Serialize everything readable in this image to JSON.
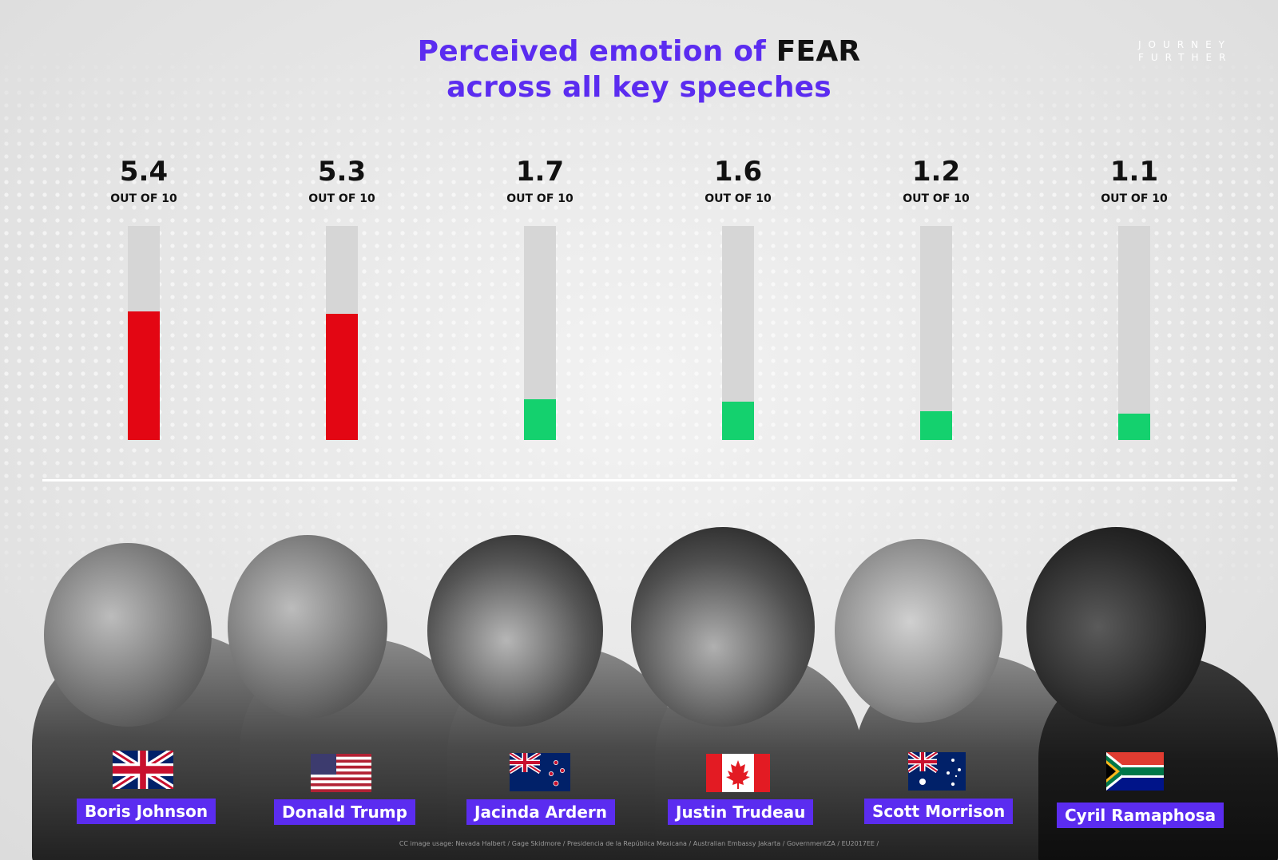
{
  "title": {
    "line1_pre": "Perceived emotion of ",
    "line1_highlight": "FEAR",
    "line2": "across all key speeches"
  },
  "logo": {
    "line1": "JOURNEY",
    "line2": "FURTHER"
  },
  "colors": {
    "accent": "#5b2cf0",
    "high": "#e30613",
    "low": "#14d16e",
    "track": "#d6d6d6"
  },
  "chart_data": {
    "type": "bar",
    "title": "Perceived emotion of FEAR across all key speeches",
    "categories": [
      "Boris Johnson",
      "Donald Trump",
      "Jacinda Ardern",
      "Justin Trudeau",
      "Scott Morrison",
      "Cyril Ramaphosa"
    ],
    "values": [
      5.4,
      5.3,
      1.7,
      1.6,
      1.2,
      1.1
    ],
    "value_labels": [
      "5.4",
      "5.3",
      "1.7",
      "1.6",
      "1.2",
      "1.1"
    ],
    "scale_label": "OUT OF 10",
    "ylim": [
      0,
      9
    ],
    "bar_colors": [
      "#e30613",
      "#e30613",
      "#14d16e",
      "#14d16e",
      "#14d16e",
      "#14d16e"
    ]
  },
  "people": [
    {
      "name": "Boris Johnson",
      "flag": "uk-flag-icon"
    },
    {
      "name": "Donald Trump",
      "flag": "us-flag-icon"
    },
    {
      "name": "Jacinda Ardern",
      "flag": "nz-flag-icon"
    },
    {
      "name": "Justin Trudeau",
      "flag": "canada-flag-icon"
    },
    {
      "name": "Scott Morrison",
      "flag": "australia-flag-icon"
    },
    {
      "name": "Cyril Ramaphosa",
      "flag": "south-africa-flag-icon"
    }
  ],
  "credit": "CC image usage: Nevada Halbert / Gage Skidmore / Presidencia de la República Mexicana / Australian Embassy Jakarta / GovernmentZA / EU2017EE /"
}
